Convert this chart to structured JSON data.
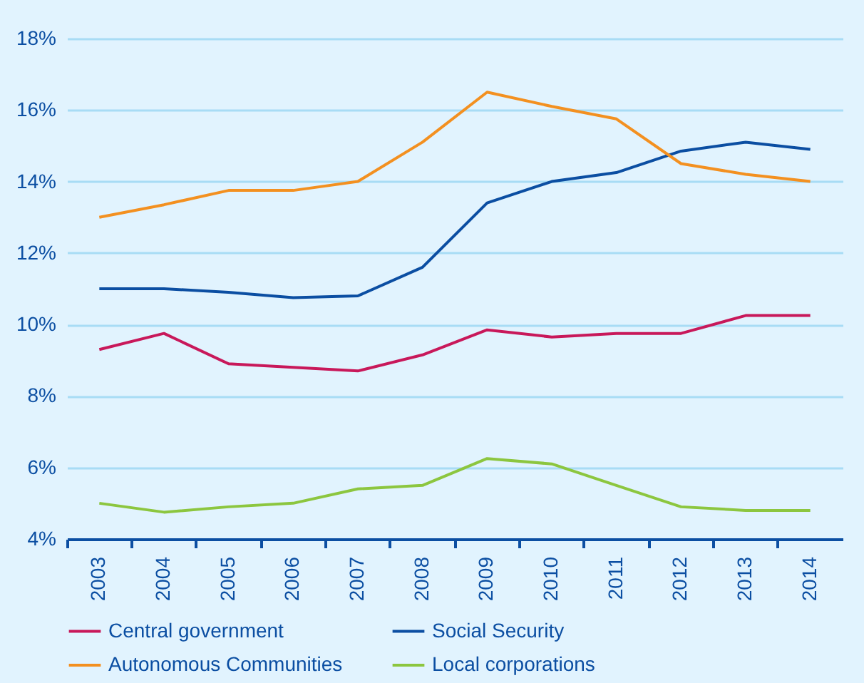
{
  "chart_data": {
    "type": "line",
    "categories": [
      "2003",
      "2004",
      "2005",
      "2006",
      "2007",
      "2008",
      "2009",
      "2010",
      "2011",
      "2012",
      "2013",
      "2014"
    ],
    "series": [
      {
        "name": "Central government",
        "color": "#c8185a",
        "values": [
          9.3,
          9.75,
          8.9,
          8.8,
          8.7,
          9.15,
          9.85,
          9.65,
          9.75,
          9.75,
          10.25,
          10.25
        ]
      },
      {
        "name": "Social Security",
        "color": "#0b4ea2",
        "values": [
          11.0,
          11.0,
          10.9,
          10.75,
          10.8,
          11.6,
          13.4,
          14.0,
          14.25,
          14.85,
          15.1,
          14.9
        ]
      },
      {
        "name": "Autonomous Communities",
        "color": "#f39020",
        "values": [
          13.0,
          13.35,
          13.75,
          13.75,
          14.0,
          15.1,
          16.5,
          16.1,
          15.75,
          14.5,
          14.2,
          14.0
        ]
      },
      {
        "name": "Local corporations",
        "color": "#8cc63f",
        "values": [
          5.0,
          4.75,
          4.9,
          5.0,
          5.4,
          5.5,
          6.25,
          6.1,
          5.5,
          4.9,
          4.8,
          4.8
        ]
      }
    ],
    "ylim": [
      4,
      18
    ],
    "yticks": [
      {
        "value": 4,
        "label": "4%"
      },
      {
        "value": 6,
        "label": "6%"
      },
      {
        "value": 8,
        "label": "8%"
      },
      {
        "value": 10,
        "label": "10%"
      },
      {
        "value": 12,
        "label": "12%"
      },
      {
        "value": 14,
        "label": "14%"
      },
      {
        "value": 16,
        "label": "16%"
      },
      {
        "value": 18,
        "label": "18%"
      }
    ],
    "grid": "y",
    "legend": "bottom",
    "marker": "none",
    "line_style": "solid"
  }
}
